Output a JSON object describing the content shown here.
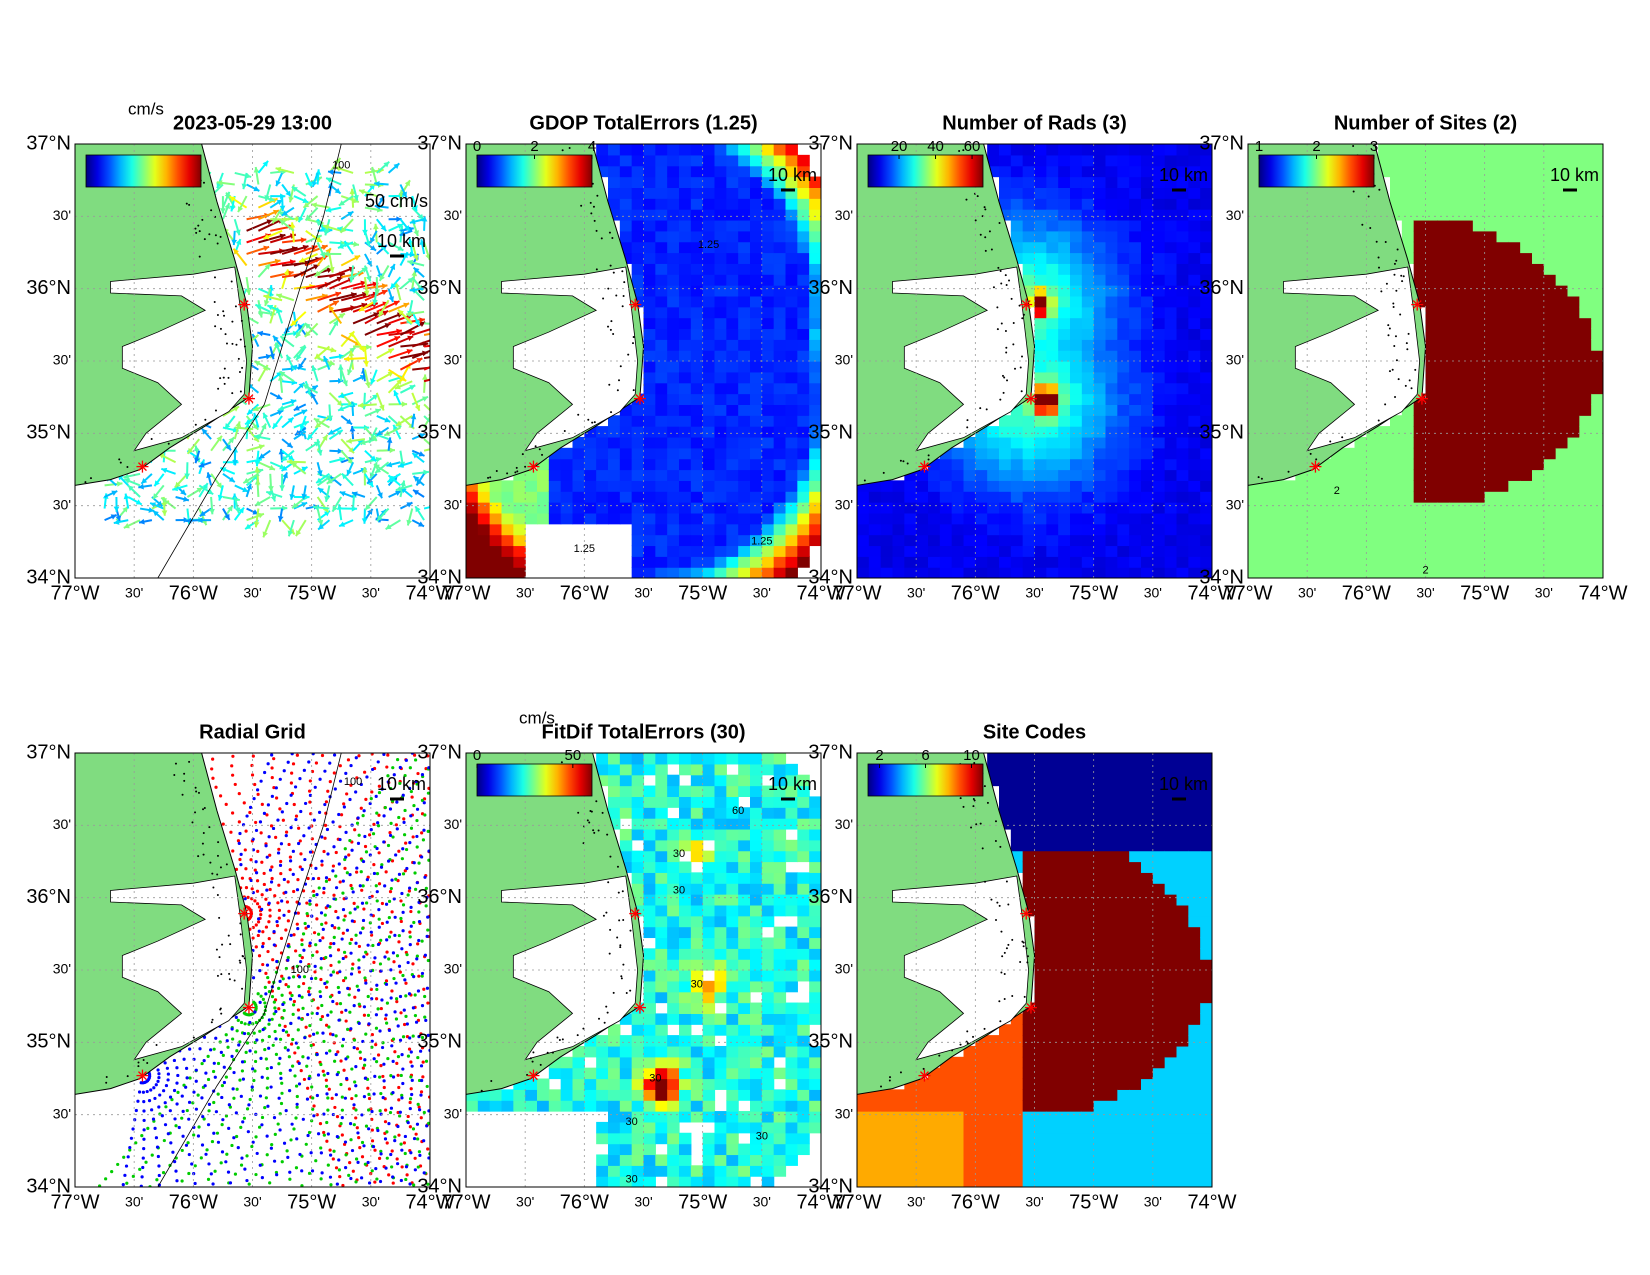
{
  "figure": {
    "lon_ticks": [
      {
        "value": -77,
        "label": "77°W"
      },
      {
        "value": -76.5,
        "label": "30'"
      },
      {
        "value": -76,
        "label": "76°W"
      },
      {
        "value": -75.5,
        "label": "30'"
      },
      {
        "value": -75,
        "label": "75°W"
      },
      {
        "value": -74.5,
        "label": "30'"
      },
      {
        "value": -74,
        "label": "74°W"
      }
    ],
    "lat_ticks": [
      {
        "value": 34,
        "label": "34°N"
      },
      {
        "value": 34.5,
        "label": "30'"
      },
      {
        "value": 35,
        "label": "35°N"
      },
      {
        "value": 35.5,
        "label": "30'"
      },
      {
        "value": 36,
        "label": "36°N"
      },
      {
        "value": 36.5,
        "label": "30'"
      },
      {
        "value": 37,
        "label": "37°N"
      }
    ],
    "panels": [
      {
        "title": "2023-05-29 13:00",
        "colorbar_unit": "cm/s",
        "reference_label": "50 cm/s",
        "scale_label": "10 km",
        "contour_labels": [
          "100"
        ]
      },
      {
        "title": "GDOP TotalErrors (1.25)",
        "colorbar_lim": [
          0,
          4
        ],
        "colorbar_ticks": [
          0,
          2,
          4
        ],
        "scale_label": "10 km",
        "contour_labels": [
          "1.25",
          "1.25",
          "1.25"
        ]
      },
      {
        "title": "Number of Rads (3)",
        "colorbar_lim": [
          3,
          66
        ],
        "colorbar_ticks": [
          20,
          40,
          60
        ],
        "scale_label": "10 km"
      },
      {
        "title": "Number of Sites (2)",
        "colorbar_lim": [
          1,
          3
        ],
        "colorbar_ticks": [
          1,
          2,
          3
        ],
        "scale_label": "10 km",
        "contour_labels": [
          "2",
          "2"
        ]
      },
      {
        "title": "Radial Grid",
        "scale_label": "10 km",
        "contour_labels": [
          "100",
          "100"
        ]
      },
      {
        "title": "FitDif TotalErrors (30)",
        "colorbar_unit": "cm/s",
        "colorbar_lim": [
          0,
          60
        ],
        "colorbar_ticks": [
          0,
          50
        ],
        "scale_label": "10 km",
        "contour_labels": [
          "30",
          "30",
          "30",
          "30",
          "30",
          "30",
          "30",
          "60"
        ]
      },
      {
        "title": "Site Codes",
        "colorbar_lim": [
          1,
          11
        ],
        "colorbar_ticks": [
          2,
          6,
          10
        ],
        "scale_label": "10 km"
      }
    ]
  }
}
